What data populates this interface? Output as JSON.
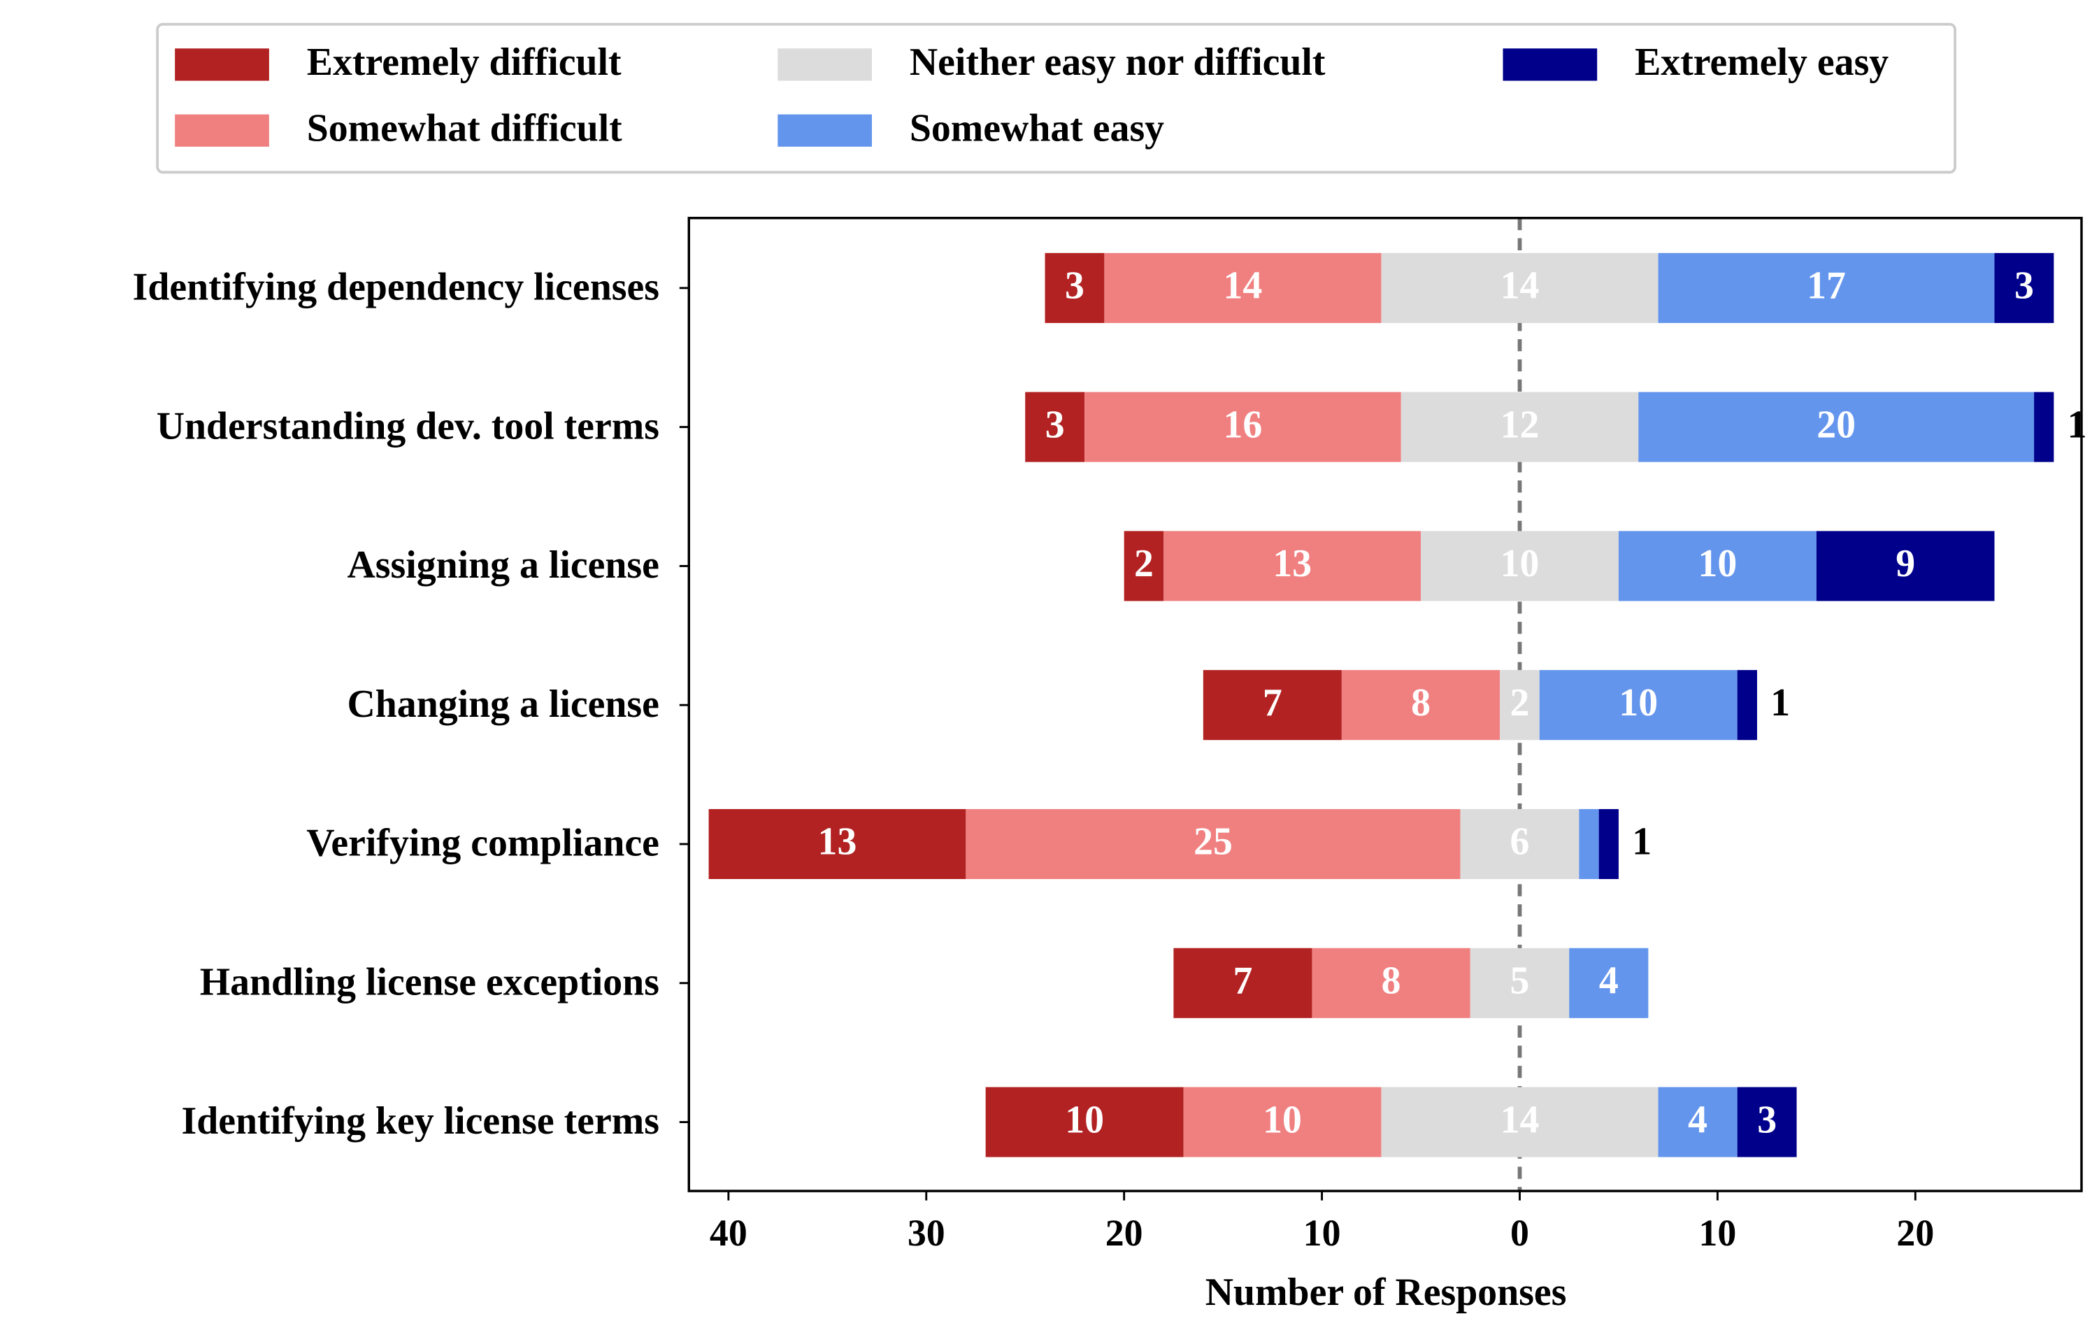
{
  "chart_data": {
    "type": "diverging_bar",
    "xlabel": "Number of Responses",
    "categories": [
      "Identifying dependency licenses",
      "Understanding dev. tool terms",
      "Assigning a license",
      "Changing a license",
      "Verifying compliance",
      "Handling license exceptions",
      "Identifying key license terms"
    ],
    "series": [
      {
        "name": "Extremely difficult",
        "color": "#b22222",
        "values": [
          3,
          3,
          2,
          7,
          13,
          7,
          10
        ]
      },
      {
        "name": "Somewhat difficult",
        "color": "#f08080",
        "values": [
          14,
          16,
          13,
          8,
          25,
          8,
          10
        ]
      },
      {
        "name": "Neither easy nor difficult",
        "color": "#dcdcdc",
        "values": [
          14,
          12,
          10,
          2,
          6,
          5,
          14
        ]
      },
      {
        "name": "Somewhat easy",
        "color": "#6495ed",
        "values": [
          17,
          20,
          10,
          10,
          1,
          4,
          4
        ]
      },
      {
        "name": "Extremely easy",
        "color": "#00008b",
        "values": [
          3,
          1,
          9,
          1,
          1,
          0,
          3
        ]
      }
    ],
    "xlim": [
      -42,
      28.4
    ],
    "xticks": [
      {
        "value": -40,
        "label": "40"
      },
      {
        "value": -30,
        "label": "30"
      },
      {
        "value": -20,
        "label": "20"
      },
      {
        "value": -10,
        "label": "10"
      },
      0,
      10,
      20
    ],
    "legend": "top"
  }
}
